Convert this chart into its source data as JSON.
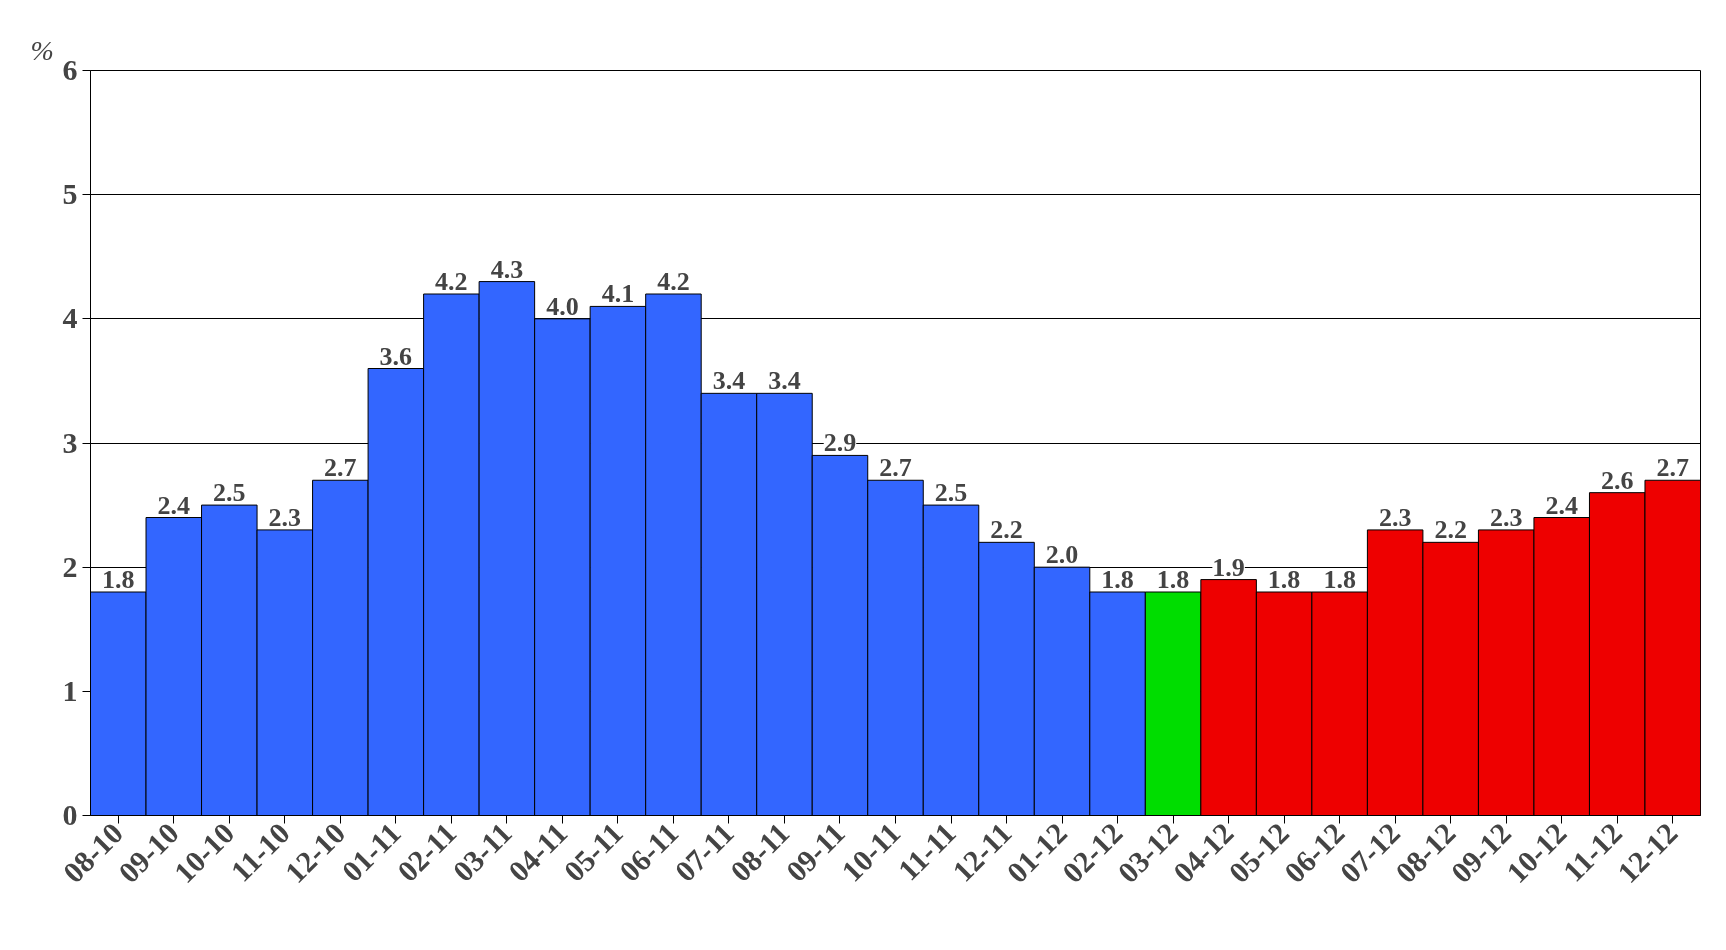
{
  "chart_data": {
    "type": "bar",
    "ylabel": "%",
    "categories": [
      "08-10",
      "09-10",
      "10-10",
      "11-10",
      "12-10",
      "01-11",
      "02-11",
      "03-11",
      "04-11",
      "05-11",
      "06-11",
      "07-11",
      "08-11",
      "09-11",
      "10-11",
      "11-11",
      "12-11",
      "01-12",
      "02-12",
      "03-12",
      "04-12",
      "05-12",
      "06-12",
      "07-12",
      "08-12",
      "09-12",
      "10-12",
      "11-12",
      "12-12"
    ],
    "values": [
      1.8,
      2.4,
      2.5,
      2.3,
      2.7,
      3.6,
      4.2,
      4.3,
      4.0,
      4.1,
      4.2,
      3.4,
      3.4,
      2.9,
      2.7,
      2.5,
      2.2,
      2.0,
      1.8,
      1.8,
      1.9,
      1.8,
      1.8,
      2.3,
      2.2,
      2.3,
      2.4,
      2.6,
      2.7
    ],
    "colors": [
      "#3366ff",
      "#3366ff",
      "#3366ff",
      "#3366ff",
      "#3366ff",
      "#3366ff",
      "#3366ff",
      "#3366ff",
      "#3366ff",
      "#3366ff",
      "#3366ff",
      "#3366ff",
      "#3366ff",
      "#3366ff",
      "#3366ff",
      "#3366ff",
      "#3366ff",
      "#3366ff",
      "#3366ff",
      "#00dd00",
      "#ee0000",
      "#ee0000",
      "#ee0000",
      "#ee0000",
      "#ee0000",
      "#ee0000",
      "#ee0000",
      "#ee0000",
      "#ee0000"
    ],
    "value_labels": [
      "1.8",
      "2.4",
      "2.5",
      "2.3",
      "2.7",
      "3.6",
      "4.2",
      "4.3",
      "4.0",
      "4.1",
      "4.2",
      "3.4",
      "3.4",
      "2.9",
      "2.7",
      "2.5",
      "2.2",
      "2.0",
      "1.8",
      "1.8",
      "1.9",
      "1.8",
      "1.8",
      "2.3",
      "2.2",
      "2.3",
      "2.4",
      "2.6",
      "2.7"
    ],
    "ylim": [
      0,
      6
    ],
    "yticks": [
      0,
      1,
      2,
      3,
      4,
      5,
      6
    ],
    "grid": "y"
  }
}
